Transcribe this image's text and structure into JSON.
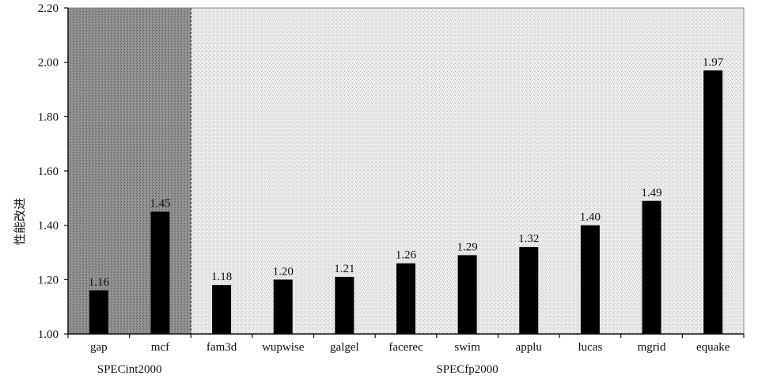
{
  "chart_data": {
    "type": "bar",
    "ylabel": "性能改进",
    "xlabel": "",
    "ylim": [
      1.0,
      2.2
    ],
    "yticks": [
      "1.00",
      "1.20",
      "1.40",
      "1.60",
      "1.80",
      "2.00",
      "2.20"
    ],
    "categories": [
      "gap",
      "mcf",
      "fam3d",
      "wupwise",
      "galgel",
      "facerec",
      "swim",
      "applu",
      "lucas",
      "mgrid",
      "equake"
    ],
    "values": [
      1.16,
      1.45,
      1.18,
      1.2,
      1.21,
      1.26,
      1.29,
      1.32,
      1.4,
      1.49,
      1.97
    ],
    "value_labels": [
      "1.16",
      "1.45",
      "1.18",
      "1.20",
      "1.21",
      "1.26",
      "1.29",
      "1.32",
      "1.40",
      "1.49",
      "1.97"
    ],
    "groups": [
      {
        "name": "SPECint2000",
        "categories": [
          "gap",
          "mcf"
        ]
      },
      {
        "name": "SPECfp2000",
        "categories": [
          "fam3d",
          "wupwise",
          "galgel",
          "facerec",
          "swim",
          "applu",
          "lucas",
          "mgrid",
          "equake"
        ]
      }
    ],
    "grid": false,
    "colors": {
      "bar": "#000000",
      "group1_background": "#8f8f8f",
      "group2_background": "#e6e6e6",
      "axis": "#111111"
    }
  }
}
